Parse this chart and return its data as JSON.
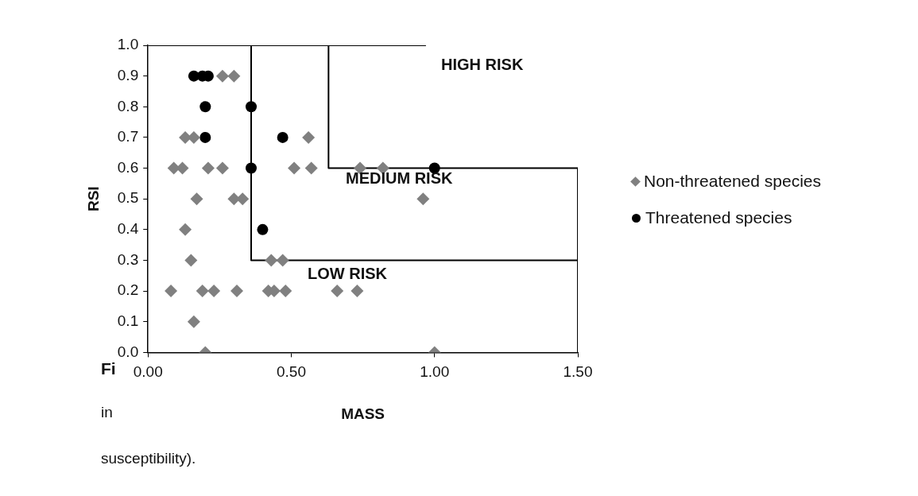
{
  "chart_data": {
    "type": "scatter",
    "xlabel": "MASS",
    "ylabel": "RSI",
    "xlim": [
      0,
      1.5
    ],
    "ylim": [
      0,
      1
    ],
    "xticks": [
      {
        "value": 0,
        "label": "0.00"
      },
      {
        "value": 0.5,
        "label": "0.50"
      },
      {
        "value": 1,
        "label": "1.00"
      },
      {
        "value": 1.5,
        "label": "1.50"
      }
    ],
    "yticks": [
      {
        "value": 0,
        "label": "0.0"
      },
      0.1,
      0.2,
      0.3,
      0.4,
      0.5,
      0.6,
      0.7,
      0.8,
      0.9,
      {
        "value": 1,
        "label": "1.0"
      }
    ],
    "grid": false,
    "legend": "right",
    "series": [
      {
        "name": "Non-threatened species",
        "type": "scatter",
        "marker": "diamond",
        "color": "#808080",
        "x": [
          0.26,
          0.3,
          0.13,
          0.16,
          0.56,
          0.09,
          0.12,
          0.21,
          0.26,
          0.51,
          0.57,
          0.74,
          0.82,
          0.17,
          0.3,
          0.33,
          0.96,
          0.13,
          0.15,
          0.43,
          0.47,
          0.08,
          0.19,
          0.23,
          0.31,
          0.42,
          0.44,
          0.48,
          0.66,
          0.73,
          0.16,
          0.2,
          1.0
        ],
        "values": [
          0.9,
          0.9,
          0.7,
          0.7,
          0.7,
          0.6,
          0.6,
          0.6,
          0.6,
          0.6,
          0.6,
          0.6,
          0.6,
          0.5,
          0.5,
          0.5,
          0.5,
          0.4,
          0.3,
          0.3,
          0.3,
          0.2,
          0.2,
          0.2,
          0.2,
          0.2,
          0.2,
          0.2,
          0.2,
          0.2,
          0.1,
          0.0,
          0.0
        ]
      },
      {
        "name": "Threatened species",
        "type": "scatter",
        "marker": "circle",
        "color": "#000000",
        "x": [
          0.16,
          0.19,
          0.21,
          0.2,
          0.36,
          0.2,
          0.47,
          0.36,
          1.0,
          0.4
        ],
        "values": [
          0.9,
          0.9,
          0.9,
          0.8,
          0.8,
          0.7,
          0.7,
          0.6,
          0.6,
          0.4
        ]
      },
      {
        "type": "line",
        "marker": "none",
        "color": "#000000",
        "x": [
          0.36,
          0.36,
          1.5
        ],
        "values": [
          1,
          0.3,
          0.3
        ]
      },
      {
        "type": "line",
        "marker": "none",
        "color": "#000000",
        "x": [
          0.63,
          0.63,
          1.5,
          1.5
        ],
        "values": [
          1,
          0.6,
          0.6,
          0
        ]
      },
      {
        "type": "line",
        "marker": "none",
        "color": "#000000",
        "x": [
          0,
          0.97
        ],
        "values": [
          1,
          1
        ]
      }
    ],
    "annotations": [
      "HIGH RISK",
      "MEDIUM RISK",
      "LOW RISK",
      "Fi",
      "in",
      "susceptibility)."
    ]
  }
}
